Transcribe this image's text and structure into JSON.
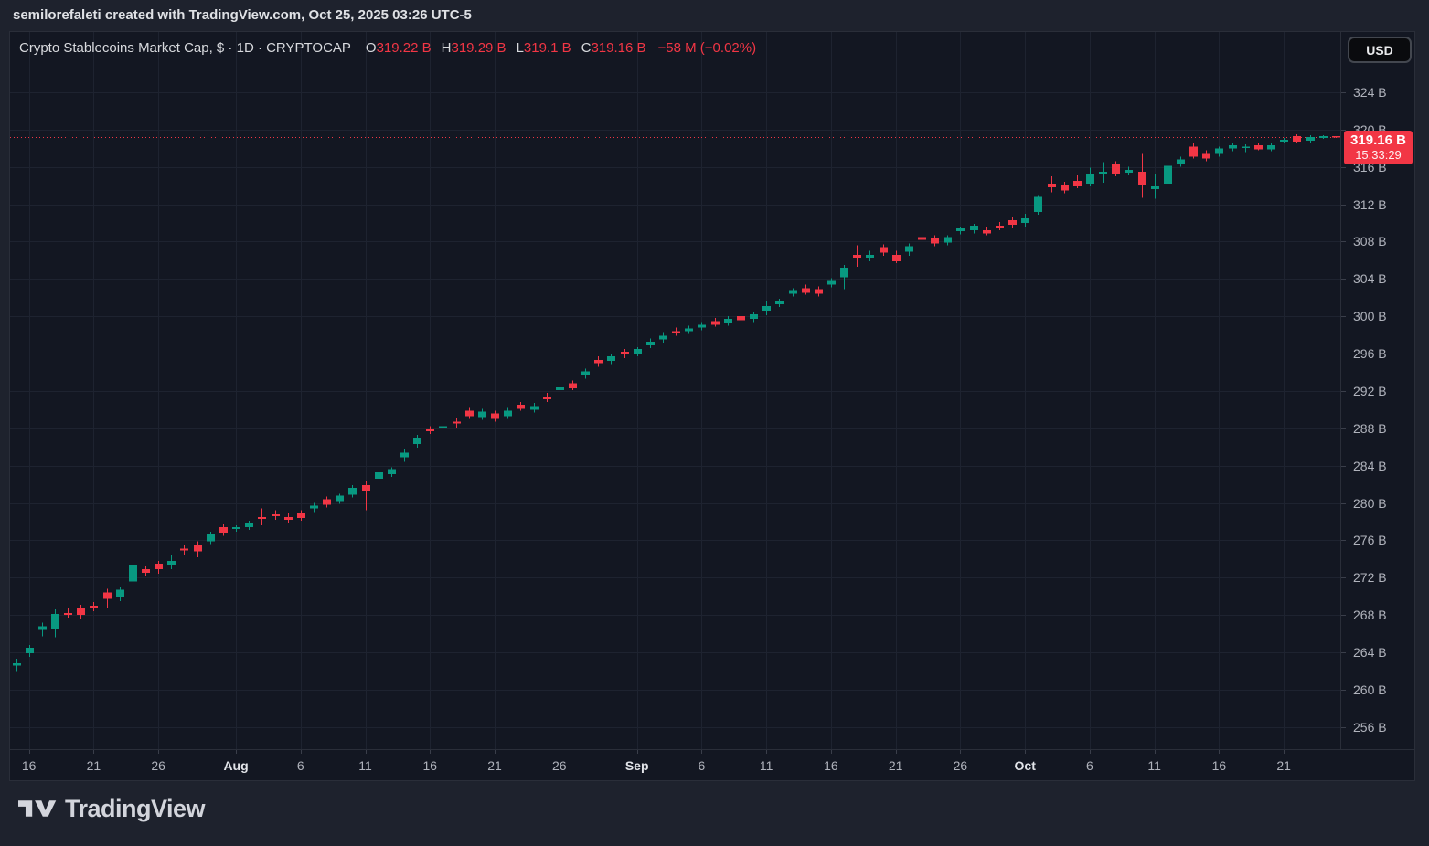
{
  "attribution": {
    "text": "semilorefaleti created with TradingView.com, Oct 25, 2025 03:26 UTC-5"
  },
  "legend": {
    "title": "Crypto Stablecoins Market Cap, $ · 1D · CRYPTOCAP",
    "ohlc": [
      {
        "k": "O",
        "v": "319.22 B"
      },
      {
        "k": "H",
        "v": "319.29 B"
      },
      {
        "k": "L",
        "v": "319.1 B"
      },
      {
        "k": "C",
        "v": "319.16 B"
      }
    ],
    "change": "−58 M (−0.02%)"
  },
  "price_scale": {
    "currency_button": "USD",
    "price_label": "319.16 B",
    "countdown": "15:33:29"
  },
  "footer": {
    "logo_text": "TradingView"
  },
  "colors": {
    "up": "#089981",
    "down": "#f23645",
    "price_line": "#f23645",
    "background": "#131722",
    "frame": "#1e222d",
    "grid": "#1e2330",
    "text_muted": "#b0b3bc",
    "text_bright": "#d8dade",
    "badge": "#f23645"
  },
  "chart_data": {
    "type": "candlestick",
    "title": "Crypto Stablecoins Market Cap",
    "currency": "USD",
    "interval": "1D",
    "symbol_source": "CRYPTOCAP",
    "ylim": [
      253.6,
      330.5
    ],
    "grid": true,
    "last_price": 319.16,
    "y_ticks": [
      {
        "v": 324,
        "label": "324 B"
      },
      {
        "v": 320,
        "label": "320 B"
      },
      {
        "v": 316,
        "label": "316 B"
      },
      {
        "v": 312,
        "label": "312 B"
      },
      {
        "v": 308,
        "label": "308 B"
      },
      {
        "v": 304,
        "label": "304 B"
      },
      {
        "v": 300,
        "label": "300 B"
      },
      {
        "v": 296,
        "label": "296 B"
      },
      {
        "v": 292,
        "label": "292 B"
      },
      {
        "v": 288,
        "label": "288 B"
      },
      {
        "v": 284,
        "label": "284 B"
      },
      {
        "v": 280,
        "label": "280 B"
      },
      {
        "v": 276,
        "label": "276 B"
      },
      {
        "v": 272,
        "label": "272 B"
      },
      {
        "v": 268,
        "label": "268 B"
      },
      {
        "v": 264,
        "label": "264 B"
      },
      {
        "v": 260,
        "label": "260 B"
      },
      {
        "v": 256,
        "label": "256 B"
      }
    ],
    "x_ticks": [
      {
        "i": 1,
        "label": "16",
        "major": false
      },
      {
        "i": 6,
        "label": "21",
        "major": false
      },
      {
        "i": 11,
        "label": "26",
        "major": false
      },
      {
        "i": 17,
        "label": "Aug",
        "major": true
      },
      {
        "i": 22,
        "label": "6",
        "major": false
      },
      {
        "i": 27,
        "label": "11",
        "major": false
      },
      {
        "i": 32,
        "label": "16",
        "major": false
      },
      {
        "i": 37,
        "label": "21",
        "major": false
      },
      {
        "i": 42,
        "label": "26",
        "major": false
      },
      {
        "i": 48,
        "label": "Sep",
        "major": true
      },
      {
        "i": 53,
        "label": "6",
        "major": false
      },
      {
        "i": 58,
        "label": "11",
        "major": false
      },
      {
        "i": 63,
        "label": "16",
        "major": false
      },
      {
        "i": 68,
        "label": "21",
        "major": false
      },
      {
        "i": 73,
        "label": "26",
        "major": false
      },
      {
        "i": 78,
        "label": "Oct",
        "major": true
      },
      {
        "i": 83,
        "label": "6",
        "major": false
      },
      {
        "i": 88,
        "label": "11",
        "major": false
      },
      {
        "i": 93,
        "label": "16",
        "major": false
      },
      {
        "i": 98,
        "label": "21",
        "major": false
      }
    ],
    "columns": [
      "date",
      "open",
      "high",
      "low",
      "close"
    ],
    "candles": [
      [
        "Jul 15",
        262.6,
        263.3,
        262.0,
        262.8
      ],
      [
        "Jul 16",
        263.9,
        264.8,
        263.5,
        264.5
      ],
      [
        "Jul 17",
        266.4,
        267.2,
        265.7,
        266.8
      ],
      [
        "Jul 18",
        266.5,
        268.6,
        265.6,
        268.1
      ],
      [
        "Jul 19",
        268.2,
        268.7,
        267.7,
        268.0
      ],
      [
        "Jul 20",
        268.7,
        269.1,
        267.6,
        268.0
      ],
      [
        "Jul 21",
        269.0,
        269.4,
        268.4,
        268.8
      ],
      [
        "Jul 22",
        270.4,
        270.8,
        268.8,
        269.7
      ],
      [
        "Jul 23",
        269.9,
        271.0,
        269.5,
        270.7
      ],
      [
        "Jul 24",
        271.6,
        273.9,
        269.9,
        273.4
      ],
      [
        "Jul 25",
        272.9,
        273.3,
        272.1,
        272.5
      ],
      [
        "Jul 26",
        273.5,
        273.8,
        272.4,
        272.9
      ],
      [
        "Jul 27",
        273.4,
        274.4,
        272.9,
        273.8
      ],
      [
        "Jul 28",
        275.1,
        275.5,
        274.4,
        274.9
      ],
      [
        "Jul 29",
        275.5,
        275.9,
        274.2,
        274.8
      ],
      [
        "Jul 30",
        275.9,
        276.9,
        275.6,
        276.6
      ],
      [
        "Jul 31",
        277.4,
        277.7,
        276.5,
        276.8
      ],
      [
        "Aug 1",
        277.2,
        277.6,
        276.9,
        277.4
      ],
      [
        "Aug 2",
        277.4,
        278.1,
        277.1,
        277.9
      ],
      [
        "Aug 3",
        278.5,
        279.4,
        277.6,
        278.3
      ],
      [
        "Aug 4",
        278.8,
        279.2,
        278.2,
        278.6
      ],
      [
        "Aug 5",
        278.5,
        278.9,
        277.9,
        278.2
      ],
      [
        "Aug 6",
        278.9,
        279.2,
        278.1,
        278.4
      ],
      [
        "Aug 7",
        279.4,
        280.0,
        279.0,
        279.7
      ],
      [
        "Aug 8",
        280.4,
        280.7,
        279.5,
        279.8
      ],
      [
        "Aug 9",
        280.2,
        281.0,
        279.9,
        280.8
      ],
      [
        "Aug 10",
        280.9,
        281.9,
        280.6,
        281.6
      ],
      [
        "Aug 11",
        281.9,
        282.3,
        279.2,
        281.3
      ],
      [
        "Aug 12",
        282.6,
        284.6,
        282.2,
        283.3
      ],
      [
        "Aug 13",
        283.1,
        283.8,
        282.8,
        283.6
      ],
      [
        "Aug 14",
        284.9,
        285.8,
        284.4,
        285.4
      ],
      [
        "Aug 15",
        286.3,
        287.3,
        285.9,
        287.0
      ],
      [
        "Aug 16",
        287.9,
        288.2,
        287.4,
        287.7
      ],
      [
        "Aug 17",
        288.0,
        288.4,
        287.7,
        288.2
      ],
      [
        "Aug 18",
        288.7,
        289.1,
        288.1,
        288.5
      ],
      [
        "Aug 19",
        289.9,
        290.2,
        289.0,
        289.3
      ],
      [
        "Aug 20",
        289.2,
        290.1,
        288.9,
        289.8
      ],
      [
        "Aug 21",
        289.6,
        289.9,
        288.7,
        289.0
      ],
      [
        "Aug 22",
        289.3,
        290.2,
        289.0,
        289.9
      ],
      [
        "Aug 23",
        290.5,
        290.8,
        289.9,
        290.1
      ],
      [
        "Aug 24",
        290.0,
        290.7,
        289.7,
        290.4
      ],
      [
        "Aug 25",
        291.4,
        291.8,
        290.8,
        291.1
      ],
      [
        "Aug 26",
        292.1,
        292.6,
        291.8,
        292.4
      ],
      [
        "Aug 27",
        292.8,
        293.1,
        292.1,
        292.3
      ],
      [
        "Aug 28",
        293.7,
        294.4,
        293.3,
        294.1
      ],
      [
        "Aug 29",
        295.3,
        295.7,
        294.6,
        295.0
      ],
      [
        "Aug 30",
        295.2,
        295.9,
        294.9,
        295.7
      ],
      [
        "Aug 31",
        296.2,
        296.5,
        295.5,
        295.9
      ],
      [
        "Sep 1",
        296.0,
        296.7,
        295.7,
        296.5
      ],
      [
        "Sep 2",
        296.9,
        297.6,
        296.6,
        297.3
      ],
      [
        "Sep 3",
        297.5,
        298.3,
        297.2,
        297.9
      ],
      [
        "Sep 4",
        298.4,
        298.8,
        297.9,
        298.2
      ],
      [
        "Sep 5",
        298.4,
        299.0,
        298.1,
        298.7
      ],
      [
        "Sep 6",
        298.8,
        299.4,
        298.5,
        299.1
      ],
      [
        "Sep 7",
        299.5,
        299.8,
        298.9,
        299.1
      ],
      [
        "Sep 8",
        299.3,
        300.0,
        299.0,
        299.7
      ],
      [
        "Sep 9",
        300.0,
        300.3,
        299.3,
        299.6
      ],
      [
        "Sep 10",
        299.7,
        300.5,
        299.4,
        300.2
      ],
      [
        "Sep 11",
        300.6,
        301.6,
        300.1,
        301.1
      ],
      [
        "Sep 12",
        301.3,
        301.9,
        301.0,
        301.6
      ],
      [
        "Sep 13",
        302.4,
        303.0,
        302.1,
        302.8
      ],
      [
        "Sep 14",
        303.0,
        303.4,
        302.3,
        302.5
      ],
      [
        "Sep 15",
        302.9,
        303.2,
        302.1,
        302.4
      ],
      [
        "Sep 16",
        303.4,
        304.1,
        303.1,
        303.8
      ],
      [
        "Sep 17",
        304.2,
        305.5,
        302.9,
        305.2
      ],
      [
        "Sep 18",
        306.6,
        307.6,
        305.3,
        306.3
      ],
      [
        "Sep 19",
        306.3,
        307.0,
        305.9,
        306.6
      ],
      [
        "Sep 20",
        307.4,
        307.7,
        306.5,
        306.8
      ],
      [
        "Sep 21",
        306.6,
        307.0,
        305.7,
        305.9
      ],
      [
        "Sep 22",
        306.9,
        307.8,
        306.5,
        307.5
      ],
      [
        "Sep 23",
        308.5,
        309.7,
        308.0,
        308.2
      ],
      [
        "Sep 24",
        308.4,
        308.7,
        307.5,
        307.8
      ],
      [
        "Sep 25",
        307.9,
        308.7,
        307.6,
        308.5
      ],
      [
        "Sep 26",
        309.1,
        309.6,
        308.8,
        309.4
      ],
      [
        "Sep 27",
        309.2,
        309.9,
        308.9,
        309.7
      ],
      [
        "Sep 28",
        309.2,
        309.5,
        308.7,
        308.9
      ],
      [
        "Sep 29",
        309.7,
        310.1,
        309.2,
        309.4
      ],
      [
        "Sep 30",
        310.3,
        310.6,
        309.4,
        309.8
      ],
      [
        "Oct 1",
        310.0,
        311.0,
        309.5,
        310.5
      ],
      [
        "Oct 2",
        311.2,
        313.0,
        310.9,
        312.8
      ],
      [
        "Oct 3",
        314.2,
        315.0,
        313.3,
        313.8
      ],
      [
        "Oct 4",
        314.1,
        314.4,
        313.2,
        313.5
      ],
      [
        "Oct 5",
        314.5,
        315.1,
        313.7,
        313.9
      ],
      [
        "Oct 6",
        314.2,
        315.9,
        313.9,
        315.2
      ],
      [
        "Oct 7",
        315.3,
        316.5,
        314.3,
        315.5
      ],
      [
        "Oct 8",
        316.3,
        316.6,
        315.0,
        315.3
      ],
      [
        "Oct 9",
        315.4,
        316.0,
        315.1,
        315.7
      ],
      [
        "Oct 10",
        315.5,
        317.4,
        312.7,
        314.1
      ],
      [
        "Oct 11",
        313.6,
        315.3,
        312.6,
        313.9
      ],
      [
        "Oct 12",
        314.2,
        316.3,
        313.9,
        316.1
      ],
      [
        "Oct 13",
        316.3,
        317.1,
        316.0,
        316.8
      ],
      [
        "Oct 14",
        318.2,
        318.6,
        316.9,
        317.1
      ],
      [
        "Oct 15",
        317.4,
        317.8,
        316.6,
        316.9
      ],
      [
        "Oct 16",
        317.4,
        318.2,
        317.1,
        318.0
      ],
      [
        "Oct 17",
        318.0,
        318.6,
        317.7,
        318.3
      ],
      [
        "Oct 18",
        318.0,
        318.4,
        317.6,
        318.1
      ],
      [
        "Oct 19",
        318.3,
        318.6,
        317.8,
        317.9
      ],
      [
        "Oct 20",
        317.9,
        318.5,
        317.7,
        318.3
      ],
      [
        "Oct 21",
        318.7,
        319.1,
        318.5,
        318.9
      ],
      [
        "Oct 22",
        319.3,
        319.5,
        318.6,
        318.7
      ],
      [
        "Oct 23",
        318.8,
        319.4,
        318.6,
        319.2
      ],
      [
        "Oct 24",
        319.1,
        319.4,
        319.0,
        319.2
      ],
      [
        "Oct 25",
        319.22,
        319.29,
        319.1,
        319.16
      ]
    ]
  }
}
